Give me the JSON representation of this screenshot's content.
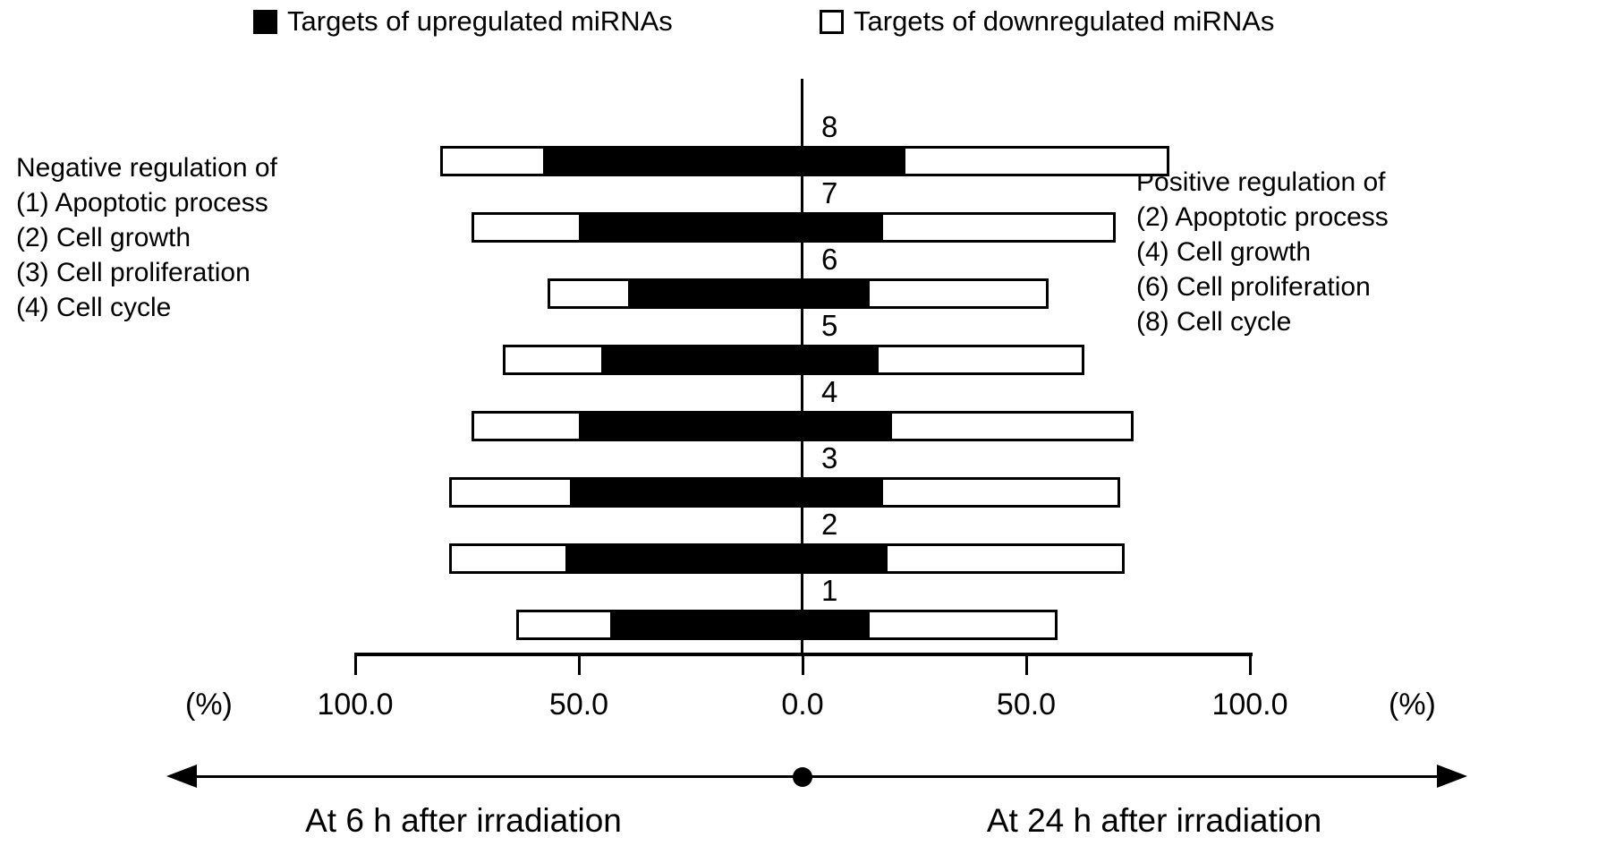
{
  "legend": {
    "upregulated": "Targets of upregulated miRNAs",
    "downregulated": "Targets of downregulated miRNAs"
  },
  "side_labels": {
    "left": [
      "Negative regulation of",
      "(1) Apoptotic process",
      "(2) Cell growth",
      "(3) Cell proliferation",
      "(4) Cell cycle"
    ],
    "right": [
      "Positive regulation of",
      "(2) Apoptotic process",
      "(4) Cell growth",
      "(6) Cell proliferation",
      "(8) Cell cycle"
    ]
  },
  "axis": {
    "unit_left": "(%)",
    "unit_right": "(%)",
    "ticks": [
      {
        "value": -100,
        "label": "100.0"
      },
      {
        "value": -50,
        "label": "50.0"
      },
      {
        "value": 0,
        "label": "0.0"
      },
      {
        "value": 50,
        "label": "50.0"
      },
      {
        "value": 100,
        "label": "100.0"
      }
    ]
  },
  "footer": {
    "left_label": "At 6 h after irradiation",
    "right_label": "At 24 h after irradiation"
  },
  "colors": {
    "filled_series": "#000000",
    "open_series": "#ffffff",
    "ink": "#000000"
  },
  "chart_data": {
    "type": "bar",
    "variant": "diverging-horizontal-stacked",
    "title": "",
    "categories": [
      "1",
      "2",
      "3",
      "4",
      "5",
      "6",
      "7",
      "8"
    ],
    "x_unit": "(%)",
    "x_ticks_percent": [
      100,
      50,
      0,
      50,
      100
    ],
    "xlim_left_percent": 100,
    "xlim_right_percent": 100,
    "left_side_meaning": "At 6 h after irradiation",
    "right_side_meaning": "At 24 h after irradiation",
    "legend_left_meaning": "Negative regulation of: (1) Apoptotic process, (2) Cell growth, (3) Cell proliferation, (4) Cell cycle",
    "legend_right_meaning": "Positive regulation of: (2) Apoptotic process, (4) Cell growth, (6) Cell proliferation, (8) Cell cycle",
    "series": [
      {
        "name": "Targets of upregulated miRNAs - 6 h (left, filled black)",
        "values": [
          43,
          53,
          52,
          50,
          45,
          39,
          50,
          58
        ]
      },
      {
        "name": "Targets of downregulated miRNAs - 6 h (left, open white)",
        "values": [
          21,
          26,
          27,
          24,
          22,
          18,
          24,
          23
        ]
      },
      {
        "name": "Targets of upregulated miRNAs - 24 h (right, filled black)",
        "values": [
          15,
          19,
          18,
          20,
          17,
          15,
          18,
          23
        ]
      },
      {
        "name": "Targets of downregulated miRNAs - 24 h (right, open white)",
        "values": [
          42,
          53,
          53,
          54,
          46,
          40,
          52,
          59
        ]
      }
    ]
  }
}
